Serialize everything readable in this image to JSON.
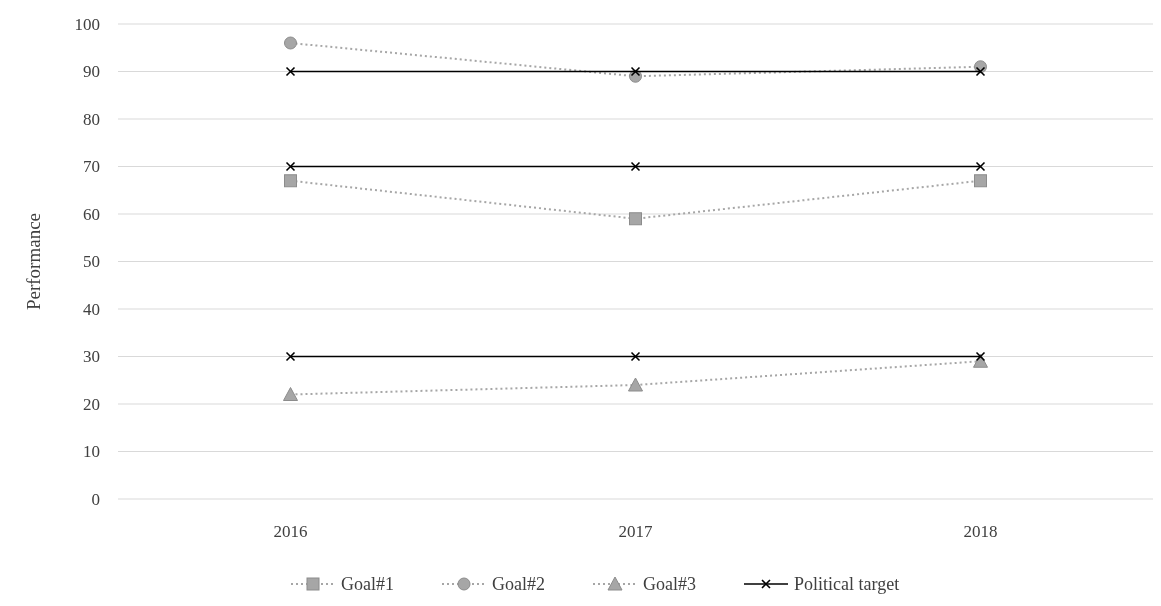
{
  "chart_data": {
    "type": "line",
    "ylabel": "Performance",
    "categories": [
      "2016",
      "2017",
      "2018"
    ],
    "ylim": [
      0,
      100
    ],
    "yticks": [
      0,
      10,
      20,
      30,
      40,
      50,
      60,
      70,
      80,
      90,
      100
    ],
    "grid": "y",
    "legend": "bottom",
    "series": [
      {
        "name": "Goal#1",
        "color": "#a6a6a6",
        "marker": "square",
        "line_style": "dotted",
        "values": [
          67,
          59,
          67
        ]
      },
      {
        "name": "Goal#2",
        "color": "#a6a6a6",
        "marker": "circle",
        "line_style": "dotted",
        "values": [
          96,
          89,
          91
        ]
      },
      {
        "name": "Goal#3",
        "color": "#a6a6a6",
        "marker": "triangle",
        "line_style": "dotted",
        "values": [
          22,
          24,
          29
        ]
      },
      {
        "name": "Political target",
        "color": "#000000",
        "marker": "cross",
        "line_style": "solid",
        "values": [
          90,
          90,
          90
        ]
      },
      {
        "color": "#000000",
        "marker": "cross",
        "line_style": "solid",
        "values": [
          70,
          70,
          70
        ]
      },
      {
        "color": "#000000",
        "marker": "cross",
        "line_style": "solid",
        "values": [
          30,
          30,
          30
        ]
      }
    ]
  }
}
